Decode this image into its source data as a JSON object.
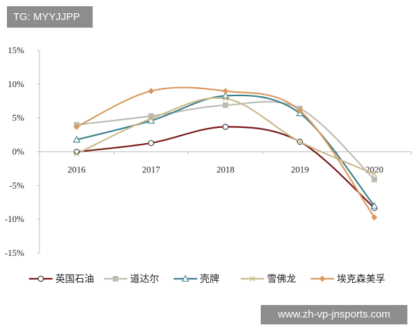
{
  "watermark_top": "TG: MYYJJPP",
  "watermark_bottom": "www.zh-vp-jnsports.com",
  "chart_data": {
    "type": "line",
    "title": "",
    "xlabel": "",
    "ylabel": "",
    "categories": [
      "2016",
      "2017",
      "2018",
      "2019",
      "2020"
    ],
    "ylim": [
      -15,
      15
    ],
    "yticks": [
      -15,
      -10,
      -5,
      0,
      5,
      10,
      15
    ],
    "ytick_labels": [
      "-15%",
      "-10%",
      "-5%",
      "0%",
      "5%",
      "10%",
      "15%"
    ],
    "grid": false,
    "legend_position": "bottom",
    "smooth": true,
    "series": [
      {
        "name": "英国石油",
        "values": [
          0.0,
          1.3,
          3.7,
          1.5,
          -8.3
        ],
        "color": "#7a1616",
        "marker": "circle-open"
      },
      {
        "name": "道达尔",
        "values": [
          4.0,
          5.3,
          6.9,
          6.4,
          -4.1
        ],
        "color": "#bcbcb4",
        "marker": "square"
      },
      {
        "name": "壳牌",
        "values": [
          1.8,
          4.6,
          8.3,
          5.7,
          -8.0
        ],
        "color": "#3b7f8c",
        "marker": "triangle-open"
      },
      {
        "name": "雪佛龙",
        "values": [
          -0.3,
          4.9,
          7.9,
          1.5,
          -3.3
        ],
        "color": "#c9b98a",
        "marker": "x"
      },
      {
        "name": "埃克森美孚",
        "values": [
          3.7,
          9.0,
          9.0,
          6.1,
          -9.7
        ],
        "color": "#d9995f",
        "marker": "diamond"
      }
    ]
  }
}
